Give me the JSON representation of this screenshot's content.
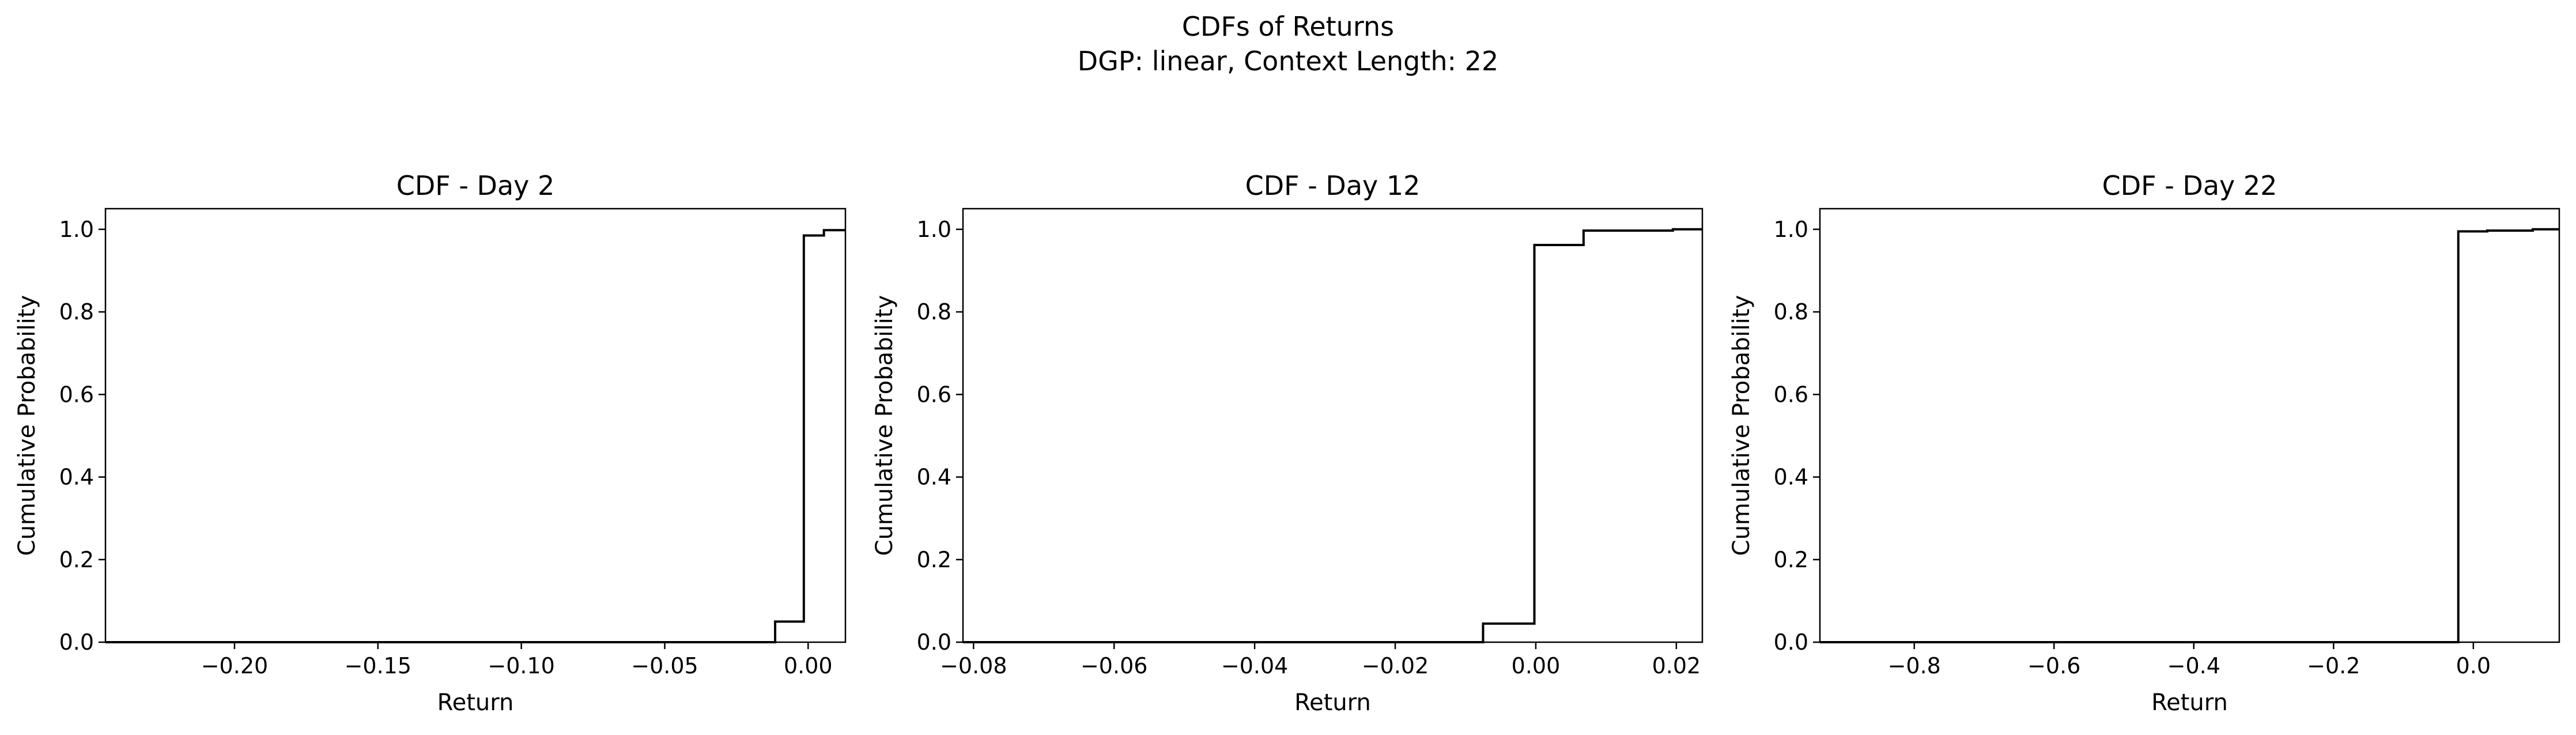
{
  "figure": {
    "title_line1": "CDFs of Returns",
    "title_line2": "DGP: linear, Context Length: 22"
  },
  "chart_data": [
    {
      "type": "line",
      "drawstyle": "steps-post",
      "title": "CDF - Day 2",
      "xlabel": "Return",
      "ylabel": "Cumulative Probability",
      "xlim": [
        -0.245,
        0.013
      ],
      "ylim": [
        0.0,
        1.05
      ],
      "xticks": [
        -0.2,
        -0.15,
        -0.1,
        -0.05,
        0.0
      ],
      "xtick_labels": [
        "−0.20",
        "−0.15",
        "−0.10",
        "−0.05",
        "0.00"
      ],
      "yticks": [
        0.0,
        0.2,
        0.4,
        0.6,
        0.8,
        1.0
      ],
      "ytick_labels": [
        "0.0",
        "0.2",
        "0.4",
        "0.6",
        "0.8",
        "1.0"
      ],
      "grid": false,
      "color": "#000000",
      "series": [
        {
          "x": [
            -0.245,
            -0.0115,
            -0.0015,
            0.0055,
            0.013
          ],
          "y": [
            0.0,
            0.05,
            0.985,
            0.998,
            0.998
          ]
        }
      ]
    },
    {
      "type": "line",
      "drawstyle": "steps-post",
      "title": "CDF - Day 12",
      "xlabel": "Return",
      "ylabel": "Cumulative Probability",
      "xlim": [
        -0.0815,
        0.0237
      ],
      "ylim": [
        0.0,
        1.05
      ],
      "xticks": [
        -0.08,
        -0.06,
        -0.04,
        -0.02,
        0.0,
        0.02
      ],
      "xtick_labels": [
        "−0.08",
        "−0.06",
        "−0.04",
        "−0.02",
        "0.00",
        "0.02"
      ],
      "yticks": [
        0.0,
        0.2,
        0.4,
        0.6,
        0.8,
        1.0
      ],
      "ytick_labels": [
        "0.0",
        "0.2",
        "0.4",
        "0.6",
        "0.8",
        "1.0"
      ],
      "grid": false,
      "color": "#000000",
      "series": [
        {
          "x": [
            -0.0815,
            -0.0075,
            -0.0002,
            0.0068,
            0.0195,
            0.0237
          ],
          "y": [
            0.0,
            0.045,
            0.962,
            0.997,
            1.0,
            1.0
          ]
        }
      ]
    },
    {
      "type": "line",
      "drawstyle": "steps-post",
      "title": "CDF - Day 22",
      "xlabel": "Return",
      "ylabel": "Cumulative Probability",
      "xlim": [
        -0.935,
        0.123
      ],
      "ylim": [
        0.0,
        1.05
      ],
      "xticks": [
        -0.8,
        -0.6,
        -0.4,
        -0.2,
        0.0
      ],
      "xtick_labels": [
        "−0.8",
        "−0.6",
        "−0.4",
        "−0.2",
        "0.0"
      ],
      "yticks": [
        0.0,
        0.2,
        0.4,
        0.6,
        0.8,
        1.0
      ],
      "ytick_labels": [
        "0.0",
        "0.2",
        "0.4",
        "0.6",
        "0.8",
        "1.0"
      ],
      "grid": false,
      "color": "#000000",
      "series": [
        {
          "x": [
            -0.935,
            -0.0215,
            0.02,
            0.085,
            0.123
          ],
          "y": [
            0.0,
            0.995,
            0.997,
            1.0,
            1.0
          ]
        }
      ]
    }
  ]
}
